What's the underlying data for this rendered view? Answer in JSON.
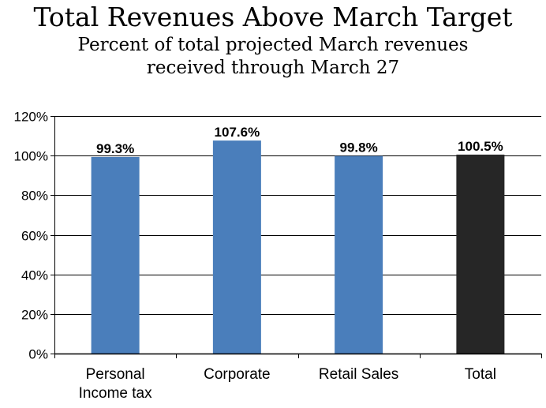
{
  "chart_data": {
    "type": "bar",
    "title": "Total Revenues Above March Target",
    "subtitle_lines": [
      "Percent of total projected March revenues",
      "received through March 27"
    ],
    "categories": [
      {
        "lines": [
          "Personal",
          "Income tax"
        ]
      },
      {
        "lines": [
          "Corporate"
        ]
      },
      {
        "lines": [
          "Retail Sales"
        ]
      },
      {
        "lines": [
          "Total"
        ]
      }
    ],
    "values": [
      99.3,
      107.6,
      99.8,
      100.5
    ],
    "data_labels": [
      "99.3%",
      "107.6%",
      "99.8%",
      "100.5%"
    ],
    "colors": [
      "#4a7ebb",
      "#4a7ebb",
      "#4a7ebb",
      "#262626"
    ],
    "ylim": [
      0,
      120
    ],
    "yticks": [
      0,
      20,
      40,
      60,
      80,
      100,
      120
    ],
    "ytick_labels": [
      "0%",
      "20%",
      "40%",
      "60%",
      "80%",
      "100%",
      "120%"
    ],
    "grid": true,
    "gridline_color": "#000000",
    "legend": "none"
  }
}
